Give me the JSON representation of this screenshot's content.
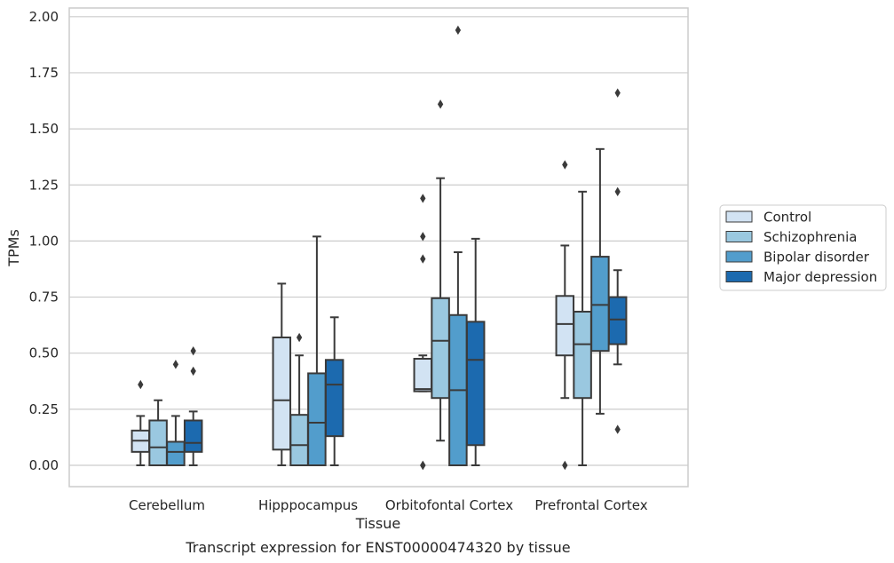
{
  "chart_data": {
    "type": "boxplot",
    "title": "Transcript expression for ENST00000474320 by tissue",
    "xlabel": "Tissue",
    "ylabel": "TPMs",
    "ylim": [
      -0.095,
      2.04
    ],
    "yticks": [
      "0.00",
      "0.25",
      "0.50",
      "0.75",
      "1.00",
      "1.25",
      "1.50",
      "1.75",
      "2.00"
    ],
    "grid": "horizontal",
    "legend_position": "right",
    "categories": [
      "Cerebellum",
      "Hipppocampus",
      "Orbitofontal Cortex",
      "Prefrontal Cortex"
    ],
    "series": [
      {
        "name": "Control",
        "color": "#d2e3f3",
        "boxes": [
          {
            "whislo": 0.0,
            "q1": 0.06,
            "med": 0.11,
            "q3": 0.155,
            "whishi": 0.22,
            "fliers": [
              0.36
            ]
          },
          {
            "whislo": 0.0,
            "q1": 0.07,
            "med": 0.29,
            "q3": 0.57,
            "whishi": 0.81,
            "fliers": []
          },
          {
            "whislo": 0.33,
            "q1": 0.33,
            "med": 0.34,
            "q3": 0.475,
            "whishi": 0.49,
            "fliers": [
              0.92,
              1.02,
              1.19,
              0.0,
              0.0
            ]
          },
          {
            "whislo": 0.3,
            "q1": 0.49,
            "med": 0.63,
            "q3": 0.755,
            "whishi": 0.98,
            "fliers": [
              0.0,
              1.34
            ]
          }
        ]
      },
      {
        "name": "Schizophrenia",
        "color": "#9ac8e0",
        "boxes": [
          {
            "whislo": 0.0,
            "q1": 0.0,
            "med": 0.08,
            "q3": 0.2,
            "whishi": 0.29,
            "fliers": []
          },
          {
            "whislo": 0.0,
            "q1": 0.0,
            "med": 0.09,
            "q3": 0.225,
            "whishi": 0.49,
            "fliers": [
              0.57
            ]
          },
          {
            "whislo": 0.11,
            "q1": 0.3,
            "med": 0.555,
            "q3": 0.745,
            "whishi": 1.28,
            "fliers": [
              1.61
            ]
          },
          {
            "whislo": 0.0,
            "q1": 0.3,
            "med": 0.54,
            "q3": 0.685,
            "whishi": 1.22,
            "fliers": []
          }
        ]
      },
      {
        "name": "Bipolar disorder",
        "color": "#529dcc",
        "boxes": [
          {
            "whislo": 0.0,
            "q1": 0.0,
            "med": 0.06,
            "q3": 0.105,
            "whishi": 0.22,
            "fliers": [
              0.45
            ]
          },
          {
            "whislo": 0.0,
            "q1": 0.0,
            "med": 0.19,
            "q3": 0.41,
            "whishi": 1.02,
            "fliers": []
          },
          {
            "whislo": 0.0,
            "q1": 0.0,
            "med": 0.335,
            "q3": 0.67,
            "whishi": 0.95,
            "fliers": [
              1.94
            ]
          },
          {
            "whislo": 0.23,
            "q1": 0.51,
            "med": 0.715,
            "q3": 0.93,
            "whishi": 1.41,
            "fliers": []
          }
        ]
      },
      {
        "name": "Major depression",
        "color": "#1c6aaf",
        "boxes": [
          {
            "whislo": 0.0,
            "q1": 0.06,
            "med": 0.1,
            "q3": 0.2,
            "whishi": 0.24,
            "fliers": [
              0.42,
              0.51
            ]
          },
          {
            "whislo": 0.0,
            "q1": 0.13,
            "med": 0.36,
            "q3": 0.47,
            "whishi": 0.66,
            "fliers": []
          },
          {
            "whislo": 0.0,
            "q1": 0.09,
            "med": 0.47,
            "q3": 0.64,
            "whishi": 1.01,
            "fliers": []
          },
          {
            "whislo": 0.45,
            "q1": 0.54,
            "med": 0.65,
            "q3": 0.75,
            "whishi": 0.87,
            "fliers": [
              0.16,
              1.22,
              1.66
            ]
          }
        ]
      }
    ]
  }
}
